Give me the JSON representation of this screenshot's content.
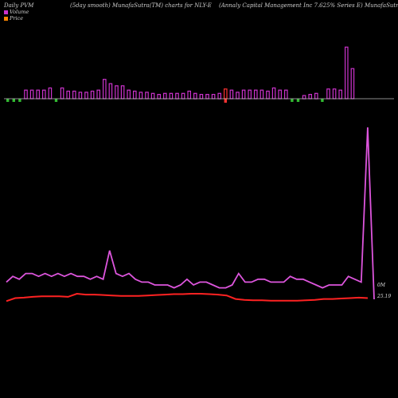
{
  "header": {
    "left": "Daily PVM",
    "mid": "(5day smooth) MunafaSutra(TM) charts for NLY-E",
    "right": "(Annaly Capital Management Inc 7.625% Series E) MunafaSutra.com"
  },
  "legend": [
    {
      "label": "Volume",
      "color": "#cc33cc"
    },
    {
      "label": "Price",
      "color": "#ff8800"
    }
  ],
  "chart_data": {
    "type": "bar",
    "title": "",
    "colors": {
      "volume_up": "#cc33cc",
      "volume_down": "#33bb33",
      "volume_neg": "#ff3333",
      "volume_line": "#dd55dd",
      "price_line": "#ff2222",
      "baseline": "#bbbbbb"
    },
    "volume_bars": [
      {
        "v": 6,
        "c": "g"
      },
      {
        "v": 8,
        "c": "g"
      },
      {
        "v": 6,
        "c": "g"
      },
      {
        "v": 8,
        "c": "p"
      },
      {
        "v": 8,
        "c": "p"
      },
      {
        "v": 8,
        "c": "p"
      },
      {
        "v": 8,
        "c": "p"
      },
      {
        "v": 10,
        "c": "p"
      },
      {
        "v": 6,
        "c": "g"
      },
      {
        "v": 10,
        "c": "p"
      },
      {
        "v": 7,
        "c": "p"
      },
      {
        "v": 7,
        "c": "p"
      },
      {
        "v": 6,
        "c": "p"
      },
      {
        "v": 6,
        "c": "p"
      },
      {
        "v": 7,
        "c": "p"
      },
      {
        "v": 8,
        "c": "p"
      },
      {
        "v": 18,
        "c": "p"
      },
      {
        "v": 14,
        "c": "p"
      },
      {
        "v": 12,
        "c": "p"
      },
      {
        "v": 12,
        "c": "p"
      },
      {
        "v": 8,
        "c": "p"
      },
      {
        "v": 7,
        "c": "p"
      },
      {
        "v": 6,
        "c": "p"
      },
      {
        "v": 6,
        "c": "p"
      },
      {
        "v": 5,
        "c": "p"
      },
      {
        "v": 4,
        "c": "p"
      },
      {
        "v": 5,
        "c": "p"
      },
      {
        "v": 5,
        "c": "p"
      },
      {
        "v": 5,
        "c": "p"
      },
      {
        "v": 5,
        "c": "p"
      },
      {
        "v": 7,
        "c": "p"
      },
      {
        "v": 5,
        "c": "p"
      },
      {
        "v": 4,
        "c": "p"
      },
      {
        "v": 4,
        "c": "p"
      },
      {
        "v": 4,
        "c": "p"
      },
      {
        "v": 5,
        "c": "p"
      },
      {
        "v": 9,
        "c": "r"
      },
      {
        "v": 8,
        "c": "p"
      },
      {
        "v": 6,
        "c": "p"
      },
      {
        "v": 8,
        "c": "p"
      },
      {
        "v": 8,
        "c": "p"
      },
      {
        "v": 8,
        "c": "p"
      },
      {
        "v": 8,
        "c": "p"
      },
      {
        "v": 7,
        "c": "p"
      },
      {
        "v": 10,
        "c": "p"
      },
      {
        "v": 8,
        "c": "p"
      },
      {
        "v": 8,
        "c": "p"
      },
      {
        "v": 5,
        "c": "g"
      },
      {
        "v": 5,
        "c": "g"
      },
      {
        "v": 3,
        "c": "p"
      },
      {
        "v": 4,
        "c": "p"
      },
      {
        "v": 5,
        "c": "p"
      },
      {
        "v": 4,
        "c": "g"
      },
      {
        "v": 9,
        "c": "p"
      },
      {
        "v": 9,
        "c": "p"
      },
      {
        "v": 8,
        "c": "p"
      },
      {
        "v": 48,
        "c": "p"
      },
      {
        "v": 28,
        "c": "p"
      }
    ],
    "volume_line": [
      6,
      8,
      7,
      9,
      9,
      8,
      9,
      8,
      9,
      8,
      9,
      8,
      8,
      7,
      8,
      7,
      17,
      9,
      8,
      9,
      7,
      6,
      6,
      5,
      5,
      5,
      4,
      5,
      7,
      5,
      6,
      6,
      5,
      4,
      4,
      5,
      9,
      6,
      6,
      7,
      7,
      6,
      6,
      6,
      8,
      7,
      7,
      6,
      5,
      4,
      5,
      5,
      5,
      8,
      7,
      6,
      60,
      0
    ],
    "price_line": [
      25.05,
      25.12,
      25.13,
      25.15,
      25.16,
      25.16,
      25.16,
      25.15,
      25.22,
      25.2,
      25.2,
      25.19,
      25.18,
      25.17,
      25.17,
      25.17,
      25.18,
      25.19,
      25.2,
      25.21,
      25.21,
      25.22,
      25.22,
      25.21,
      25.2,
      25.18,
      25.1,
      25.08,
      25.07,
      25.07,
      25.06,
      25.06,
      25.06,
      25.06,
      25.07,
      25.08,
      25.1,
      25.1,
      25.11,
      25.12,
      25.13,
      25.12
    ],
    "tick_labels": {
      "volume": "0M",
      "price": "25.19"
    }
  }
}
